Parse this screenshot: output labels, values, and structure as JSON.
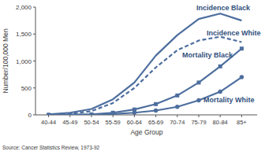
{
  "chart_data": {
    "type": "line",
    "x_label": "Age Group",
    "y_label": "Number/100,000 Men",
    "source": "Source:  Cancer Statistics Review, 1973-92",
    "categories": [
      "40-44",
      "45-49",
      "50-54",
      "55-59",
      "60-64",
      "65-69",
      "70-74",
      "75-79",
      "80-84",
      "85+"
    ],
    "ylim": [
      0,
      2000
    ],
    "yticks": [
      0,
      500,
      {
        "value": 1000,
        "label": "1,000"
      },
      {
        "value": 1500,
        "label": "1,500"
      },
      {
        "value": 2000,
        "label": "2,000"
      }
    ],
    "grid": false,
    "series": [
      {
        "name": "Incidence Black",
        "color": "#4d6e9e",
        "line_style": "solid",
        "marker": "none",
        "values": [
          10,
          40,
          110,
          290,
          600,
          1100,
          1480,
          1780,
          1880,
          1750
        ]
      },
      {
        "name": "Incidence White",
        "color": "#4d6e9e",
        "line_style": "dashed",
        "marker": "none",
        "values": [
          5,
          20,
          70,
          220,
          500,
          880,
          1200,
          1380,
          1450,
          1350
        ]
      },
      {
        "name": "Mortality Black",
        "color": "#4d6e9e",
        "line_style": "solid",
        "marker": "square",
        "values": [
          0,
          2,
          10,
          40,
          100,
          200,
          360,
          600,
          900,
          1230
        ]
      },
      {
        "name": "Mortality White",
        "color": "#4d6e9e",
        "line_style": "solid",
        "marker": "circle",
        "values": [
          0,
          1,
          5,
          15,
          40,
          80,
          150,
          270,
          430,
          700
        ]
      }
    ]
  }
}
